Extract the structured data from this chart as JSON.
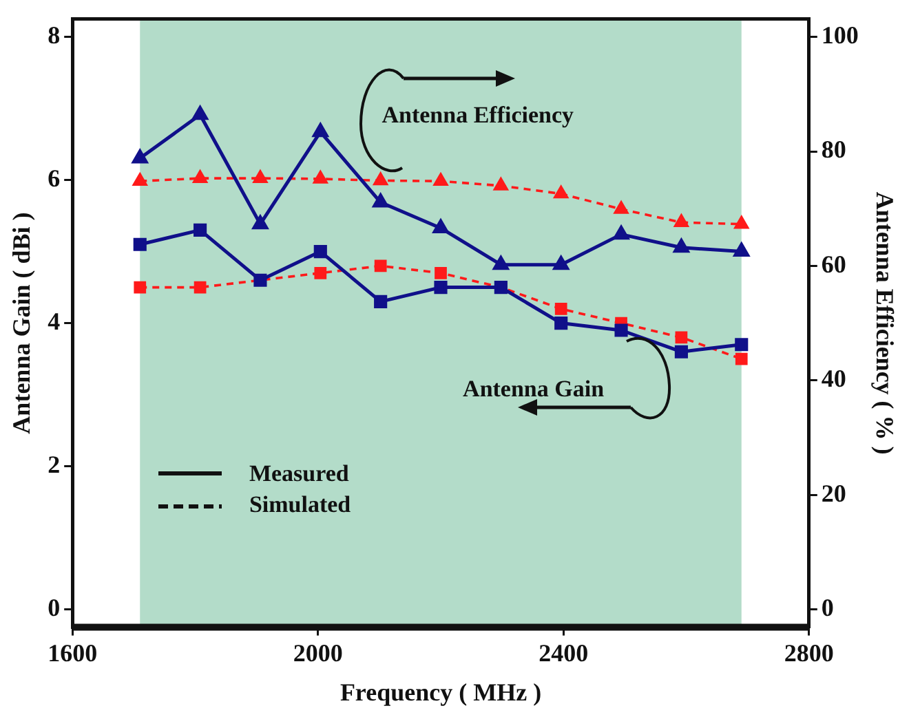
{
  "chart_data": {
    "type": "line",
    "xlabel": "Frequency ( MHz )",
    "ylabel": "Antenna Gain ( dBi )",
    "y2label": "Antenna Efficiency ( % )",
    "x": [
      1710,
      1808,
      1906,
      2004,
      2102,
      2200,
      2298,
      2396,
      2494,
      2592,
      2690
    ],
    "series": [
      {
        "color": "#10108a",
        "marker": "square",
        "line_style": "solid",
        "values": [
          5.1,
          5.3,
          4.6,
          5.0,
          4.3,
          4.5,
          4.5,
          4.0,
          3.9,
          3.6,
          3.7
        ]
      },
      {
        "color": "#ff1a1a",
        "marker": "square",
        "line_style": "dashed",
        "values": [
          4.5,
          4.5,
          4.6,
          4.7,
          4.8,
          4.7,
          4.5,
          4.2,
          4.0,
          3.8,
          3.5
        ]
      },
      {
        "color": "#10108a",
        "marker": "triangle",
        "line_style": "solid",
        "axis": "y2",
        "values": [
          78.8,
          86.4,
          67.3,
          83.4,
          71.1,
          66.6,
          60.2,
          60.2,
          65.5,
          63.2,
          62.5
        ]
      },
      {
        "color": "#ff1a1a",
        "marker": "triangle",
        "line_style": "dashed",
        "axis": "y2",
        "values": [
          74.8,
          75.3,
          75.3,
          75.2,
          74.9,
          74.8,
          74.0,
          72.6,
          69.9,
          67.6,
          67.3
        ]
      }
    ],
    "xlim": [
      1600,
      2800
    ],
    "xticks": [
      1600,
      2000,
      2400,
      2800
    ],
    "ylim": [
      -0.25,
      8.25
    ],
    "yticks": [
      0,
      2,
      4,
      6,
      8
    ],
    "y2lim": [
      -3.125,
      103.125
    ],
    "y2ticks": [
      0,
      20,
      40,
      60,
      80,
      100
    ],
    "bands": [
      {
        "axis": "x",
        "from": 1710,
        "to": 2690,
        "color": "#b3dcc9"
      }
    ],
    "annotations": [
      "Antenna Efficiency",
      "Antenna Gain",
      "Measured",
      "Simulated"
    ],
    "grid": false
  }
}
